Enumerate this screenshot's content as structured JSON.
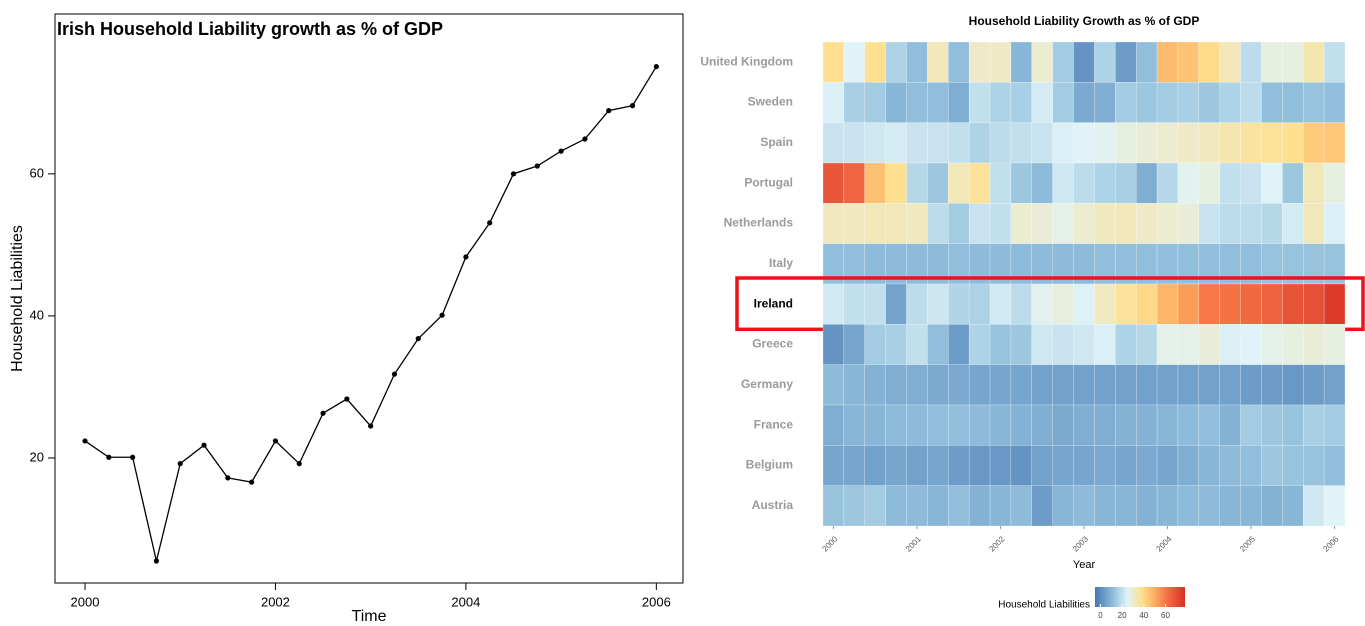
{
  "chart_data": [
    {
      "type": "line",
      "title": "Irish Household Liability growth as % of GDP",
      "xlabel": "Time",
      "ylabel": "Household Liabilities",
      "x": [
        2000,
        2000.25,
        2000.5,
        2000.75,
        2001,
        2001.25,
        2001.5,
        2001.75,
        2002,
        2002.25,
        2002.5,
        2002.75,
        2003,
        2003.25,
        2003.5,
        2003.75,
        2004,
        2004.25,
        2004.5,
        2004.75,
        2005,
        2005.25,
        2005.5,
        2005.75,
        2006
      ],
      "values": [
        22.4,
        20.1,
        20.1,
        5.5,
        19.2,
        21.8,
        17.2,
        16.6,
        22.4,
        19.2,
        26.3,
        28.3,
        24.5,
        31.8,
        36.8,
        40.1,
        48.3,
        53.1,
        60.0,
        61.1,
        63.2,
        64.9,
        68.9,
        69.6,
        75.1
      ],
      "color": "#000000",
      "xlim": [
        1999.685,
        2006.28
      ],
      "xticks": [
        2000,
        2002,
        2004,
        2006
      ],
      "ylim": [
        2.4,
        82.5
      ],
      "yticks": [
        20,
        40,
        60
      ]
    },
    {
      "type": "heatmap",
      "title": "Household Liability Growth as % of GDP",
      "xlabel": "Year",
      "x": [
        2000,
        2000.25,
        2000.5,
        2000.75,
        2001,
        2001.25,
        2001.5,
        2001.75,
        2002,
        2002.25,
        2002.5,
        2002.75,
        2003,
        2003.25,
        2003.5,
        2003.75,
        2004,
        2004.25,
        2004.5,
        2004.75,
        2005,
        2005.25,
        2005.5,
        2005.75,
        2006
      ],
      "xticks": [
        2000,
        2001,
        2002,
        2003,
        2004,
        2005,
        2006
      ],
      "series": [
        {
          "name": "United Kingdom",
          "values": [
            38,
            25,
            38,
            17,
            12,
            33,
            12,
            31,
            31,
            10,
            30,
            15,
            2,
            17,
            4,
            12,
            47,
            45,
            39,
            33,
            19,
            28,
            28,
            34,
            20
          ]
        },
        {
          "name": "Sweden",
          "values": [
            24,
            16,
            15,
            10,
            12,
            12,
            8,
            20,
            17,
            16,
            23,
            15,
            7,
            8,
            15,
            14,
            15,
            16,
            14,
            17,
            19,
            12,
            12,
            13,
            12
          ]
        },
        {
          "name": "Spain",
          "values": [
            21,
            21,
            22,
            23,
            21,
            21,
            20,
            17,
            19,
            20,
            21,
            24,
            25,
            26,
            28,
            29,
            30,
            31,
            32,
            34,
            36,
            37,
            38,
            43,
            44
          ]
        },
        {
          "name": "Portugal",
          "values": [
            68,
            64,
            46,
            38,
            18,
            14,
            33,
            37,
            20,
            14,
            11,
            22,
            19,
            17,
            16,
            8,
            18,
            26,
            28,
            20,
            21,
            25,
            14,
            33,
            28
          ]
        },
        {
          "name": "Netherlands",
          "values": [
            32,
            32,
            33,
            33,
            32,
            19,
            15,
            21,
            20,
            30,
            29,
            27,
            30,
            32,
            33,
            31,
            30,
            29,
            21,
            19,
            19,
            18,
            23,
            33,
            24
          ]
        },
        {
          "name": "Italy",
          "values": [
            12,
            12,
            11,
            11,
            11,
            11,
            12,
            11,
            11,
            11,
            11,
            11,
            11,
            12,
            12,
            12,
            12,
            12,
            12,
            12,
            12,
            13,
            13,
            13,
            13
          ]
        },
        {
          "name": "Ireland",
          "values": [
            22.4,
            20.1,
            20.1,
            5.5,
            19.2,
            21.8,
            17.2,
            16.6,
            22.4,
            19.2,
            26.3,
            28.3,
            24.5,
            31.8,
            36.8,
            40.1,
            48.3,
            53.1,
            60.0,
            61.1,
            63.2,
            64.9,
            68.9,
            69.6,
            75.1
          ]
        },
        {
          "name": "Greece",
          "values": [
            2,
            6,
            15,
            16,
            20,
            12,
            4,
            17,
            13,
            14,
            22,
            21,
            22,
            24,
            17,
            18,
            27,
            27,
            29,
            24,
            25,
            27,
            28,
            29,
            28
          ]
        },
        {
          "name": "Germany",
          "values": [
            11,
            10,
            9,
            8,
            8,
            7,
            7,
            6,
            6,
            6,
            5,
            5,
            5,
            5,
            5,
            5,
            5,
            5,
            5,
            5,
            4,
            4,
            3,
            4,
            5
          ]
        },
        {
          "name": "France",
          "values": [
            8,
            10,
            10,
            11,
            11,
            12,
            12,
            11,
            10,
            9,
            8,
            7,
            8,
            8,
            9,
            9,
            10,
            11,
            12,
            9,
            15,
            14,
            13,
            16,
            15
          ]
        },
        {
          "name": "Belgium",
          "values": [
            6,
            6,
            5,
            6,
            5,
            6,
            4,
            3,
            3,
            2,
            5,
            6,
            6,
            7,
            6,
            7,
            6,
            8,
            10,
            11,
            12,
            14,
            13,
            13,
            12
          ]
        },
        {
          "name": "Austria",
          "values": [
            13,
            14,
            15,
            11,
            11,
            10,
            12,
            9,
            10,
            11,
            4,
            10,
            11,
            10,
            10,
            9,
            10,
            11,
            11,
            10,
            10,
            9,
            10,
            22,
            25
          ]
        }
      ],
      "highlight": "Ireland",
      "highlight_color": "#e8141b",
      "colorbar_title": "Household Liabilities",
      "colorbar_ticks": [
        0,
        20,
        40,
        60
      ],
      "clim": [
        -5,
        78
      ],
      "colorscale": [
        {
          "value": -5,
          "color": "#4575b4"
        },
        {
          "value": 12,
          "color": "#91bfdb"
        },
        {
          "value": 25,
          "color": "#e0f3f8"
        },
        {
          "value": 38,
          "color": "#fee090"
        },
        {
          "value": 50,
          "color": "#fdae61"
        },
        {
          "value": 62,
          "color": "#f46d43"
        },
        {
          "value": 78,
          "color": "#d73027"
        }
      ]
    }
  ]
}
